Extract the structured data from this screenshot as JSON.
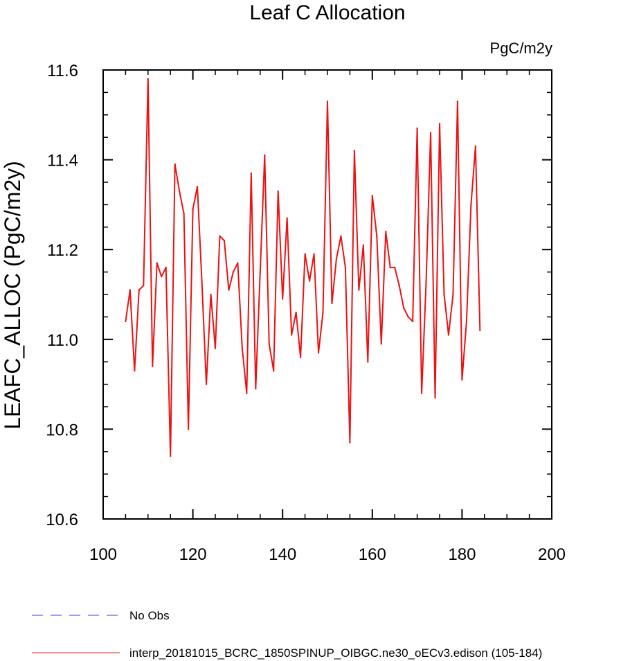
{
  "chart_data": {
    "type": "line",
    "title": "Leaf C Allocation",
    "units_label": "PgC/m2y",
    "ylabel": "LEAFC_ALLOC  (PgC/m2y)",
    "xlabel": "",
    "xlim": [
      100,
      200
    ],
    "ylim": [
      10.6,
      11.6
    ],
    "x_ticks": [
      100,
      120,
      140,
      160,
      180,
      200
    ],
    "y_ticks": [
      10.6,
      10.8,
      11.0,
      11.2,
      11.4,
      11.6
    ],
    "x_tick_labels": [
      "100",
      "120",
      "140",
      "160",
      "180",
      "200"
    ],
    "y_tick_labels": [
      "10.6",
      "10.8",
      "11.0",
      "11.2",
      "11.4",
      "11.6"
    ],
    "grid": false,
    "legend_position": "bottom-left",
    "legend": [
      {
        "label": "No Obs",
        "color": "#3a3af0",
        "style": "dashed"
      },
      {
        "label": "interp_20181015_BCRC_1850SPINUP_OIBGC.ne30_oECv3.edison (105-184)",
        "color": "#ee1111",
        "style": "solid"
      }
    ],
    "series": [
      {
        "name": "interp_20181015_BCRC_1850SPINUP_OIBGC.ne30_oECv3.edison (105-184)",
        "color": "#ee1111",
        "x": [
          105,
          106,
          107,
          108,
          109,
          110,
          111,
          112,
          113,
          114,
          115,
          116,
          117,
          118,
          119,
          120,
          121,
          122,
          123,
          124,
          125,
          126,
          127,
          128,
          129,
          130,
          131,
          132,
          133,
          134,
          135,
          136,
          137,
          138,
          139,
          140,
          141,
          142,
          143,
          144,
          145,
          146,
          147,
          148,
          149,
          150,
          151,
          152,
          153,
          154,
          155,
          156,
          157,
          158,
          159,
          160,
          161,
          162,
          163,
          164,
          165,
          166,
          167,
          168,
          169,
          170,
          171,
          172,
          173,
          174,
          175,
          176,
          177,
          178,
          179,
          180,
          181,
          182,
          183,
          184
        ],
        "values": [
          11.04,
          11.11,
          10.93,
          11.11,
          11.12,
          11.58,
          10.94,
          11.17,
          11.14,
          11.16,
          10.74,
          11.39,
          11.33,
          11.28,
          10.8,
          11.29,
          11.34,
          11.13,
          10.9,
          11.1,
          10.98,
          11.23,
          11.22,
          11.11,
          11.15,
          11.17,
          10.98,
          10.88,
          11.37,
          10.89,
          11.15,
          11.41,
          10.99,
          10.93,
          11.33,
          11.09,
          11.27,
          11.01,
          11.06,
          10.96,
          11.19,
          11.13,
          11.19,
          10.97,
          11.06,
          11.53,
          11.08,
          11.18,
          11.23,
          11.16,
          10.77,
          11.42,
          11.11,
          11.21,
          10.95,
          11.32,
          11.23,
          10.99,
          11.24,
          11.16,
          11.16,
          11.12,
          11.07,
          11.05,
          11.04,
          11.47,
          10.88,
          11.13,
          11.46,
          10.87,
          11.48,
          11.1,
          11.01,
          11.1,
          11.53,
          10.91,
          11.04,
          11.3,
          11.43,
          11.02
        ]
      }
    ]
  }
}
